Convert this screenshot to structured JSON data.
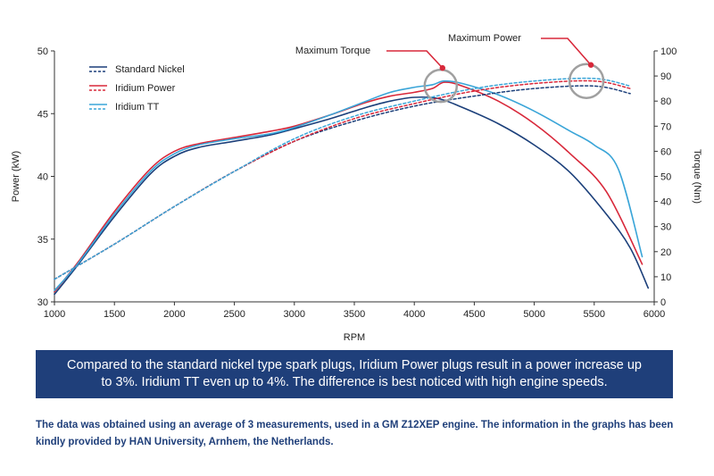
{
  "chart_data": {
    "type": "line",
    "xlabel": "RPM",
    "ylabel_left": "Power (kW)",
    "ylabel_right": "Torque (Nm)",
    "xlim": [
      1000,
      6000
    ],
    "ylim_left": [
      30,
      50
    ],
    "ylim_right": [
      0,
      100
    ],
    "x_ticks": [
      1000,
      1500,
      2000,
      2500,
      3000,
      3500,
      4000,
      4500,
      5000,
      5500,
      6000
    ],
    "y_left_ticks": [
      30,
      35,
      40,
      45,
      50
    ],
    "y_right_ticks": [
      0,
      10,
      20,
      30,
      40,
      50,
      60,
      70,
      80,
      90,
      100
    ],
    "grid": false,
    "legend_position": "top-left",
    "legend": [
      {
        "name": "Standard Nickel",
        "color": "#1b3f7a"
      },
      {
        "name": "Iridium Power",
        "color": "#d8283a"
      },
      {
        "name": "Iridium TT",
        "color": "#3aa5d8"
      }
    ],
    "series": [
      {
        "name": "Standard Nickel",
        "kind": "power",
        "axis": "left",
        "color": "#1b3f7a",
        "x": [
          1000,
          1200,
          1500,
          1800,
          2000,
          2200,
          2500,
          2800,
          3000,
          3300,
          3600,
          3800,
          4000,
          4200,
          4400,
          4700,
          5000,
          5300,
          5600,
          5800,
          5950
        ],
        "y": [
          30.6,
          33.0,
          36.8,
          40.2,
          41.6,
          42.3,
          42.8,
          43.3,
          43.8,
          44.6,
          45.5,
          46.0,
          46.3,
          46.2,
          45.5,
          44.2,
          42.5,
          40.3,
          37.0,
          34.3,
          31.1
        ]
      },
      {
        "name": "Iridium Power",
        "kind": "power",
        "axis": "left",
        "color": "#d8283a",
        "x": [
          1000,
          1200,
          1500,
          1800,
          2000,
          2200,
          2500,
          2800,
          3000,
          3300,
          3600,
          3800,
          4000,
          4150,
          4250,
          4400,
          4700,
          5000,
          5300,
          5600,
          5900
        ],
        "y": [
          30.8,
          33.2,
          37.2,
          40.6,
          42.0,
          42.6,
          43.1,
          43.6,
          44.0,
          44.9,
          45.9,
          46.4,
          46.7,
          47.0,
          47.5,
          47.2,
          46.0,
          44.2,
          41.8,
          38.8,
          33.0
        ]
      },
      {
        "name": "Iridium TT",
        "kind": "power",
        "axis": "left",
        "color": "#3aa5d8",
        "x": [
          1000,
          1200,
          1500,
          1800,
          2000,
          2200,
          2500,
          2800,
          3000,
          3300,
          3600,
          3800,
          4000,
          4150,
          4250,
          4400,
          4700,
          5000,
          5300,
          5500,
          5700,
          5900
        ],
        "y": [
          30.9,
          33.1,
          37.0,
          40.4,
          41.8,
          42.5,
          43.0,
          43.4,
          43.9,
          44.9,
          46.0,
          46.7,
          47.1,
          47.3,
          47.6,
          47.4,
          46.5,
          45.2,
          43.6,
          42.5,
          40.6,
          33.6
        ]
      },
      {
        "name": "Standard Nickel",
        "kind": "torque",
        "axis": "right",
        "color": "#1b3f7a",
        "x": [
          1000,
          1500,
          2000,
          2500,
          3000,
          3500,
          4000,
          4500,
          5000,
          5500,
          5800
        ],
        "y": [
          9,
          23,
          38,
          52,
          64,
          72,
          78,
          82,
          85,
          86,
          83
        ]
      },
      {
        "name": "Iridium Power",
        "kind": "torque",
        "axis": "right",
        "color": "#d8283a",
        "x": [
          1000,
          1500,
          2000,
          2500,
          3000,
          3500,
          4000,
          4500,
          5000,
          5500,
          5800
        ],
        "y": [
          9,
          23,
          38,
          52,
          64,
          73,
          79,
          84,
          87,
          88,
          85
        ]
      },
      {
        "name": "Iridium TT",
        "kind": "torque",
        "axis": "right",
        "color": "#3aa5d8",
        "x": [
          1000,
          1500,
          2000,
          2500,
          3000,
          3500,
          4000,
          4500,
          5000,
          5500,
          5800
        ],
        "y": [
          9,
          23,
          38,
          52,
          65,
          74,
          80,
          85,
          88,
          89,
          86
        ]
      }
    ],
    "annotations": [
      {
        "text": "Maximum Torque",
        "x": 4250,
        "y_left": 47.5
      },
      {
        "text": "Maximum Power",
        "x": 5450,
        "y_right": 88
      }
    ]
  },
  "caption": "Compared to the standard nickel type spark plugs, Iridium Power plugs result in a power increase up to 3%. Iridium TT even up to 4%. The difference is best noticed with high engine speeds.",
  "footnote": "The data was obtained using an average of 3 measurements, used in a GM Z12XEP engine.  The information in the graphs has been kindly provided by HAN University, Arnhem, the Netherlands."
}
